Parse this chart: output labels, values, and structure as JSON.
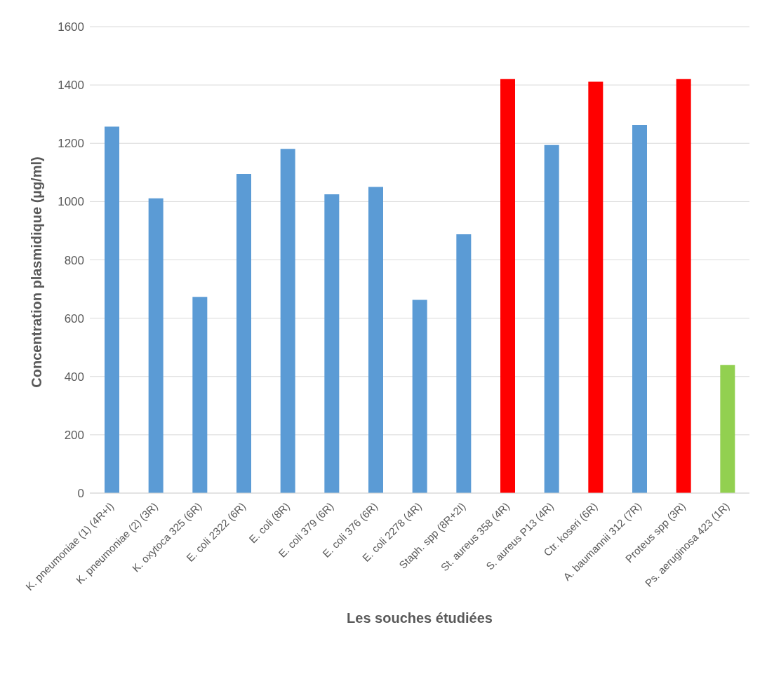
{
  "chart_data": {
    "type": "bar",
    "categories": [
      "K. pneumoniae (1) (4R+I)",
      "K. pneumoniae (2) (3R)",
      "K. oxytoca 325 (6R)",
      "E. coli 2322 (6R)",
      "E. coli (8R)",
      "E. coli 379 (6R)",
      "E. coli 376 (6R)",
      "E. coli 2278 (4R)",
      "Staph. spp (8R+2I)",
      "St. aureus 358 (4R)",
      "S. aureus P13 (4R)",
      "Ctr. koseri (6R)",
      "A. baumannii 312 (7R)",
      "Proteus spp (3R)",
      "Ps. aeruginosa 423 (1R)"
    ],
    "values": [
      1257,
      1011,
      673,
      1095,
      1181,
      1025,
      1050,
      663,
      888,
      1420,
      1194,
      1411,
      1263,
      1420,
      440
    ],
    "colors": [
      "#5b9bd5",
      "#5b9bd5",
      "#5b9bd5",
      "#5b9bd5",
      "#5b9bd5",
      "#5b9bd5",
      "#5b9bd5",
      "#5b9bd5",
      "#5b9bd5",
      "#ff0000",
      "#5b9bd5",
      "#ff0000",
      "#5b9bd5",
      "#ff0000",
      "#92d050"
    ],
    "xlabel": "Les souches étudiées",
    "ylabel": "Concentration plasmidique (µg/ml)",
    "ylim": [
      0,
      1600
    ],
    "yticks": [
      0,
      200,
      400,
      600,
      800,
      1000,
      1200,
      1400,
      1600
    ],
    "grid": "y",
    "legend": false
  }
}
